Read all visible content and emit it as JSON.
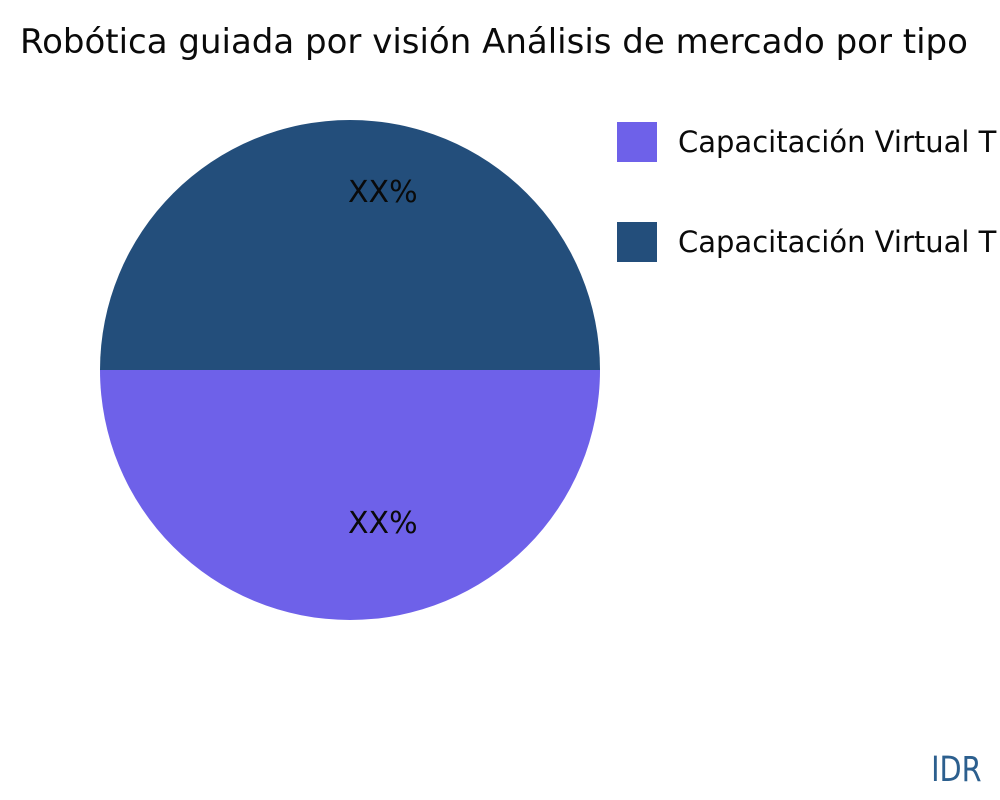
{
  "title": "Robótica guiada por visión Análisis de mercado por tipo",
  "watermark": "IDR",
  "colors": {
    "background": "#FFFFFF",
    "title_text": "#0A0A0A",
    "slice_label_text": "#0A0A0A",
    "watermark_text": "#2C5F8E",
    "purple": "#6E61E9",
    "navy": "#234E7B"
  },
  "chart_data": {
    "type": "pie",
    "title": "Robótica guiada por visión Análisis de mercado por tipo",
    "slices": [
      {
        "label": "Capacitación Virtual T",
        "value": 50,
        "value_label": "XX%",
        "color": "#6E61E9",
        "position": "bottom-half"
      },
      {
        "label": "Capacitación Virtual T",
        "value": 50,
        "value_label": "XX%",
        "color": "#234E7B",
        "position": "top-half"
      }
    ],
    "legend_position": "right"
  },
  "legend": {
    "items": [
      {
        "label": "Capacitación Virtual T",
        "color": "#6E61E9"
      },
      {
        "label": "Capacitación Virtual T",
        "color": "#234E7B"
      }
    ]
  }
}
